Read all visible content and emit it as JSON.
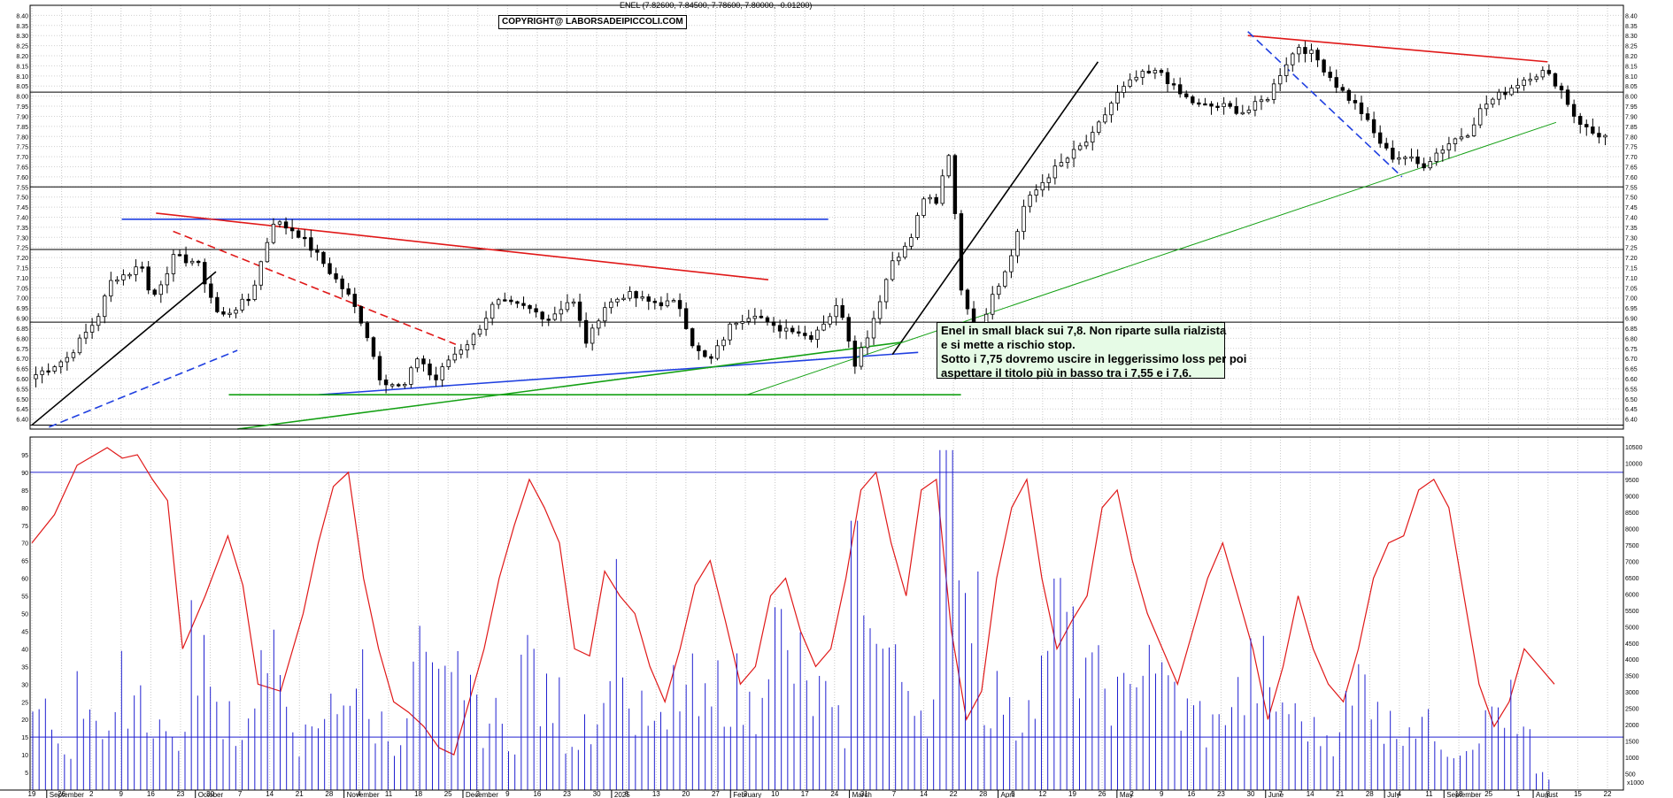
{
  "header": {
    "quote": "ENEL (7.82600, 7.84500, 7.78600, 7.80000, -0.01200)",
    "copyright": "COPYRIGHT@ LABORSADEIPICCOLI.COM"
  },
  "note_lines": [
    "Enel in small black sui 7,8. Non riparte sulla rialzista",
    "e si mette a rischio stop.",
    "Sotto i 7,75 dovremo uscire in leggerissimo loss per poi",
    "aspettare il titolo più in basso tra i 7,55 e i 7,6."
  ],
  "vol_scale_label": "x1000",
  "chart_data": [
    {
      "type": "candlestick",
      "title": "ENEL",
      "ylim": [
        6.35,
        8.45
      ],
      "y_ticks": [
        "6.40",
        "6.45",
        "6.50",
        "6.55",
        "6.60",
        "6.65",
        "6.70",
        "6.75",
        "6.80",
        "6.85",
        "6.90",
        "6.95",
        "7.00",
        "7.05",
        "7.10",
        "7.15",
        "7.20",
        "7.25",
        "7.30",
        "7.35",
        "7.40",
        "7.45",
        "7.50",
        "7.55",
        "7.60",
        "7.65",
        "7.70",
        "7.75",
        "7.80",
        "7.85",
        "7.90",
        "7.95",
        "8.00",
        "8.05",
        "8.10",
        "8.15",
        "8.20",
        "8.25",
        "8.30",
        "8.35",
        "8.40"
      ],
      "x_day_ticks": [
        "19",
        "26",
        "2",
        "9",
        "16",
        "23",
        "30",
        "7",
        "14",
        "21",
        "28",
        "4",
        "11",
        "18",
        "25",
        "2",
        "9",
        "16",
        "23",
        "30",
        "6",
        "13",
        "20",
        "27",
        "3",
        "10",
        "17",
        "24",
        "31",
        "7",
        "14",
        "22",
        "28",
        "5",
        "12",
        "19",
        "26",
        "2",
        "9",
        "16",
        "23",
        "30",
        "7",
        "14",
        "21",
        "28",
        "4",
        "11",
        "18",
        "25",
        "1",
        "8",
        "15",
        "22"
      ],
      "x_month_ticks": [
        "September",
        "October",
        "November",
        "December",
        "2025",
        "February",
        "March",
        "April",
        "May",
        "June",
        "July",
        "August",
        "September"
      ],
      "horizontal_levels": [
        8.02,
        7.55,
        7.24,
        6.88,
        6.37
      ],
      "points": [
        [
          0,
          6.62
        ],
        [
          4,
          6.7
        ],
        [
          8,
          6.9
        ],
        [
          10,
          7.1
        ],
        [
          12,
          7.12
        ],
        [
          14,
          7.17
        ],
        [
          15,
          6.98
        ],
        [
          18,
          7.2
        ],
        [
          21,
          7.18
        ],
        [
          24,
          6.9
        ],
        [
          28,
          7.0
        ],
        [
          31,
          7.38
        ],
        [
          34,
          7.33
        ],
        [
          37,
          7.2
        ],
        [
          39,
          7.1
        ],
        [
          41,
          7.0
        ],
        [
          43,
          6.85
        ],
        [
          45,
          6.6
        ],
        [
          48,
          6.55
        ],
        [
          50,
          6.72
        ],
        [
          52,
          6.58
        ],
        [
          54,
          6.7
        ],
        [
          57,
          6.8
        ],
        [
          60,
          6.98
        ],
        [
          64,
          6.95
        ],
        [
          67,
          6.9
        ],
        [
          70,
          7.0
        ],
        [
          72,
          6.77
        ],
        [
          74,
          6.95
        ],
        [
          77,
          7.02
        ],
        [
          80,
          6.98
        ],
        [
          84,
          6.97
        ],
        [
          86,
          6.75
        ],
        [
          88,
          6.68
        ],
        [
          91,
          6.88
        ],
        [
          94,
          6.93
        ],
        [
          96,
          6.85
        ],
        [
          99,
          6.85
        ],
        [
          101,
          6.8
        ],
        [
          105,
          6.97
        ],
        [
          107,
          6.68
        ],
        [
          109,
          6.85
        ],
        [
          112,
          7.2
        ],
        [
          114,
          7.26
        ],
        [
          116,
          7.5
        ],
        [
          118,
          7.45
        ],
        [
          119,
          7.8
        ],
        [
          120,
          7.45
        ],
        [
          121,
          7.0
        ],
        [
          123,
          6.8
        ],
        [
          125,
          7.03
        ],
        [
          127,
          7.15
        ],
        [
          129,
          7.45
        ],
        [
          132,
          7.6
        ],
        [
          135,
          7.7
        ],
        [
          138,
          7.8
        ],
        [
          141,
          8.0
        ],
        [
          144,
          8.1
        ],
        [
          147,
          8.12
        ],
        [
          149,
          8.02
        ],
        [
          152,
          7.95
        ],
        [
          155,
          7.95
        ],
        [
          158,
          7.92
        ],
        [
          161,
          8.0
        ],
        [
          163,
          8.15
        ],
        [
          165,
          8.25
        ],
        [
          167,
          8.2
        ],
        [
          170,
          8.05
        ],
        [
          173,
          7.93
        ],
        [
          175,
          7.8
        ],
        [
          177,
          7.7
        ],
        [
          179,
          7.7
        ],
        [
          181,
          7.65
        ],
        [
          183,
          7.72
        ],
        [
          185,
          7.78
        ],
        [
          187,
          7.82
        ],
        [
          189,
          7.95
        ],
        [
          191,
          8.0
        ],
        [
          193,
          8.05
        ],
        [
          195,
          8.1
        ],
        [
          197,
          8.12
        ],
        [
          199,
          8.05
        ],
        [
          201,
          7.9
        ],
        [
          203,
          7.82
        ],
        [
          205,
          7.8
        ]
      ],
      "trendlines": [
        {
          "color": "#000000",
          "style": "solid",
          "from": [
            "2024-09-19",
            6.37
          ],
          "to": [
            "2024-11-01",
            7.13
          ]
        },
        {
          "color": "#1f3fe0",
          "style": "dashed",
          "from": [
            "2024-09-23",
            6.36
          ],
          "to": [
            "2024-11-06",
            6.74
          ]
        },
        {
          "color": "#1f3fe0",
          "style": "solid",
          "from": [
            "2024-10-10",
            7.39
          ],
          "to": [
            "2025-03-24",
            7.39
          ]
        },
        {
          "color": "#e01818",
          "style": "solid",
          "from": [
            "2024-10-18",
            7.42
          ],
          "to": [
            "2025-03-10",
            7.09
          ]
        },
        {
          "color": "#e01818",
          "style": "dashed",
          "from": [
            "2024-10-22",
            7.33
          ],
          "to": [
            "2024-12-27",
            6.77
          ]
        },
        {
          "color": "#1f3fe0",
          "style": "solid",
          "from": [
            "2024-11-25",
            6.52
          ],
          "to": [
            "2025-04-14",
            6.73
          ]
        },
        {
          "color": "#14a014",
          "style": "solid",
          "from": [
            "2024-11-04",
            6.52
          ],
          "to": [
            "2025-04-24",
            6.52
          ]
        },
        {
          "color": "#14a014",
          "style": "solid",
          "from": [
            "2024-11-06",
            6.35
          ],
          "to": [
            "2025-04-10",
            6.78
          ]
        },
        {
          "color": "#000000",
          "style": "solid",
          "from": [
            "2025-04-08",
            6.72
          ],
          "to": [
            "2025-05-26",
            8.17
          ]
        },
        {
          "color": "#14a014",
          "style": "thin",
          "from": [
            "2025-03-05",
            6.52
          ],
          "to": [
            "2025-09-10",
            7.87
          ]
        },
        {
          "color": "#e01818",
          "style": "solid",
          "from": [
            "2025-06-30",
            8.3
          ],
          "to": [
            "2025-09-08",
            8.17
          ]
        },
        {
          "color": "#1f3fe0",
          "style": "dashed",
          "from": [
            "2025-06-30",
            8.32
          ],
          "to": [
            "2025-08-05",
            7.6
          ]
        }
      ]
    },
    {
      "type": "line",
      "title": "",
      "ylim": [
        0,
        100
      ],
      "y_ticks": [
        "5",
        "10",
        "15",
        "20",
        "25",
        "30",
        "35",
        "40",
        "45",
        "50",
        "55",
        "60",
        "65",
        "70",
        "75",
        "80",
        "85",
        "90",
        "95"
      ],
      "horizontal_levels": [
        90,
        15
      ],
      "series": [
        {
          "points": [
            [
              0,
              70
            ],
            [
              3,
              78
            ],
            [
              6,
              92
            ],
            [
              10,
              97
            ],
            [
              12,
              94
            ],
            [
              14,
              95
            ],
            [
              16,
              88
            ],
            [
              18,
              82
            ],
            [
              20,
              40
            ],
            [
              23,
              55
            ],
            [
              26,
              72
            ],
            [
              28,
              58
            ],
            [
              30,
              30
            ],
            [
              33,
              28
            ],
            [
              36,
              50
            ],
            [
              38,
              70
            ],
            [
              40,
              86
            ],
            [
              42,
              90
            ],
            [
              44,
              60
            ],
            [
              46,
              40
            ],
            [
              48,
              25
            ],
            [
              50,
              22
            ],
            [
              52,
              18
            ],
            [
              54,
              12
            ],
            [
              56,
              10
            ],
            [
              58,
              25
            ],
            [
              60,
              40
            ],
            [
              62,
              60
            ],
            [
              64,
              75
            ],
            [
              66,
              88
            ],
            [
              68,
              80
            ],
            [
              70,
              70
            ],
            [
              72,
              40
            ],
            [
              74,
              38
            ],
            [
              76,
              62
            ],
            [
              78,
              55
            ],
            [
              80,
              50
            ],
            [
              82,
              35
            ],
            [
              84,
              25
            ],
            [
              86,
              40
            ],
            [
              88,
              58
            ],
            [
              90,
              65
            ],
            [
              92,
              48
            ],
            [
              94,
              30
            ],
            [
              96,
              35
            ],
            [
              98,
              55
            ],
            [
              100,
              60
            ],
            [
              102,
              45
            ],
            [
              104,
              35
            ],
            [
              106,
              40
            ],
            [
              108,
              60
            ],
            [
              110,
              85
            ],
            [
              112,
              90
            ],
            [
              114,
              70
            ],
            [
              116,
              55
            ],
            [
              118,
              85
            ],
            [
              120,
              88
            ],
            [
              122,
              45
            ],
            [
              124,
              20
            ],
            [
              126,
              28
            ],
            [
              128,
              60
            ],
            [
              130,
              80
            ],
            [
              132,
              88
            ],
            [
              134,
              60
            ],
            [
              136,
              40
            ],
            [
              138,
              48
            ],
            [
              140,
              55
            ],
            [
              142,
              80
            ],
            [
              144,
              85
            ],
            [
              146,
              65
            ],
            [
              148,
              50
            ],
            [
              150,
              40
            ],
            [
              152,
              30
            ],
            [
              154,
              45
            ],
            [
              156,
              60
            ],
            [
              158,
              70
            ],
            [
              160,
              55
            ],
            [
              162,
              40
            ],
            [
              164,
              20
            ],
            [
              166,
              35
            ],
            [
              168,
              55
            ],
            [
              170,
              40
            ],
            [
              172,
              30
            ],
            [
              174,
              25
            ],
            [
              176,
              40
            ],
            [
              178,
              60
            ],
            [
              180,
              70
            ],
            [
              182,
              72
            ],
            [
              184,
              85
            ],
            [
              186,
              88
            ],
            [
              188,
              80
            ],
            [
              190,
              55
            ],
            [
              192,
              30
            ],
            [
              194,
              18
            ],
            [
              196,
              25
            ],
            [
              198,
              40
            ],
            [
              200,
              35
            ],
            [
              202,
              30
            ]
          ]
        }
      ]
    },
    {
      "type": "bar",
      "title": "",
      "ylabel": "x1000",
      "ylim": [
        0,
        10800
      ],
      "y_ticks": [
        "500",
        "1000",
        "1500",
        "2000",
        "2500",
        "3000",
        "3500",
        "4000",
        "4500",
        "5000",
        "5500",
        "6000",
        "6500",
        "7000",
        "7500",
        "8000",
        "8500",
        "9000",
        "9500",
        "10000",
        "10500"
      ],
      "values_sample": [
        2100,
        1400,
        2800,
        1800,
        3100,
        2200,
        1600,
        4300,
        2500,
        1900,
        3600,
        2700,
        1500,
        2400,
        3300,
        2000,
        1700,
        4000,
        2900,
        3500,
        2100,
        1800,
        3900,
        2600,
        1700,
        2300,
        5400,
        2200,
        1800,
        3000,
        2400,
        3100,
        2500,
        4600,
        3700,
        2800,
        1900,
        6900,
        4200,
        3400,
        2600,
        9800,
        6200,
        2900,
        2100,
        3600,
        5200,
        4100,
        3200,
        2700,
        4400,
        3000,
        2300,
        1900,
        2800,
        3500,
        2600,
        2100,
        1700,
        2400,
        3300,
        1900,
        2200,
        1800,
        1400,
        1900,
        2500,
        1600,
        400
      ]
    }
  ]
}
